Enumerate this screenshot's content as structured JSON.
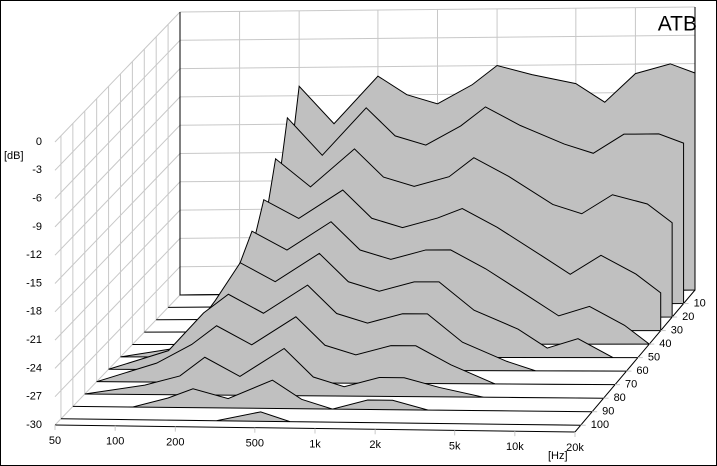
{
  "chart_data": {
    "type": "waterfall",
    "title": "ATB",
    "x_label": "[Hz]",
    "y_label": "[dB]",
    "x": [
      50,
      100,
      150,
      200,
      300,
      500,
      700,
      1000,
      1500,
      2000,
      3000,
      5000,
      7000,
      10000,
      15000,
      20000
    ],
    "xlim": [
      50,
      20000
    ],
    "log_x": true,
    "xticks": [
      50,
      100,
      200,
      500,
      {
        "value": 1000,
        "label": "1k"
      },
      {
        "value": 2000,
        "label": "2k"
      },
      {
        "value": 5000,
        "label": "5k"
      },
      {
        "value": 10000,
        "label": "10k"
      },
      {
        "value": 20000,
        "label": "20k"
      }
    ],
    "ylim": [
      -30,
      0
    ],
    "yticks": [
      0,
      -3,
      -6,
      -9,
      -12,
      -15,
      -18,
      -21,
      -24,
      -27,
      -30
    ],
    "zlim": [
      0,
      105
    ],
    "zticks": [
      10,
      20,
      30,
      40,
      50,
      60,
      70,
      80,
      90,
      100
    ],
    "color": "#c0c0c0",
    "grid": true,
    "series": [
      {
        "z": 0,
        "values": [
          -30,
          -30,
          -30,
          -8,
          -12,
          -7,
          -9,
          -10,
          -8,
          -6,
          -7,
          -8,
          -10,
          -7,
          -6,
          -7
        ]
      },
      {
        "z": 10,
        "values": [
          -30,
          -30,
          -30,
          -10,
          -14,
          -9,
          -12,
          -13,
          -11,
          -9,
          -11,
          -13,
          -14,
          -12,
          -12,
          -13
        ]
      },
      {
        "z": 20,
        "values": [
          -30,
          -30,
          -29,
          -13,
          -16,
          -12,
          -15,
          -16,
          -15,
          -13,
          -15,
          -18,
          -19,
          -17,
          -18,
          -20
        ]
      },
      {
        "z": 30,
        "values": [
          -30,
          -30,
          -27,
          -16,
          -18,
          -15,
          -18,
          -19,
          -18,
          -17,
          -19,
          -22,
          -24,
          -22,
          -24,
          -26
        ]
      },
      {
        "z": 40,
        "values": [
          -30,
          -30,
          -25,
          -18,
          -20,
          -17,
          -20,
          -21,
          -20,
          -20,
          -22,
          -25,
          -27,
          -26,
          -28,
          -30
        ]
      },
      {
        "z": 50,
        "values": [
          -30,
          -29,
          -24,
          -20,
          -22,
          -19,
          -22,
          -23,
          -22,
          -22,
          -25,
          -27,
          -29,
          -28,
          -30,
          -30
        ]
      },
      {
        "z": 60,
        "values": [
          -30,
          -28,
          -24,
          -22,
          -24,
          -21,
          -24,
          -25,
          -24,
          -24,
          -27,
          -29,
          -30,
          -30,
          -30,
          -30
        ]
      },
      {
        "z": 70,
        "values": [
          -30,
          -28,
          -26,
          -24,
          -26,
          -23,
          -26,
          -27,
          -26,
          -26,
          -28,
          -30,
          -30,
          -30,
          -30,
          -30
        ]
      },
      {
        "z": 80,
        "values": [
          -30,
          -29,
          -28,
          -26,
          -28,
          -25,
          -28,
          -29,
          -28,
          -28,
          -29,
          -30,
          -30,
          -30,
          -30,
          -30
        ]
      },
      {
        "z": 90,
        "values": [
          -30,
          -30,
          -29,
          -28,
          -29,
          -27,
          -29,
          -30,
          -29,
          -29,
          -30,
          -30,
          -30,
          -30,
          -30,
          -30
        ]
      },
      {
        "z": 100,
        "values": [
          -30,
          -30,
          -30,
          -30,
          -30,
          -29,
          -30,
          -30,
          -30,
          -30,
          -30,
          -30,
          -30,
          -30,
          -30,
          -30
        ]
      }
    ]
  }
}
